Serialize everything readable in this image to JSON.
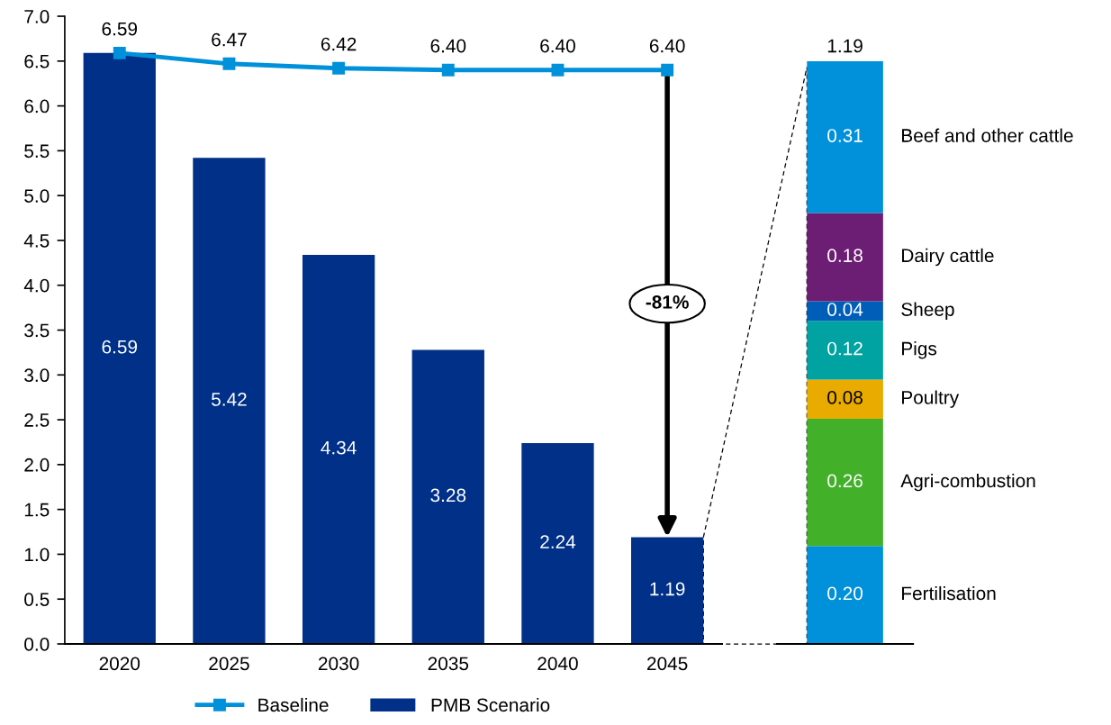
{
  "chart_data": [
    {
      "type": "bar",
      "categories": [
        "2020",
        "2025",
        "2030",
        "2035",
        "2040",
        "2045"
      ],
      "series": [
        {
          "name": "Baseline",
          "type": "line",
          "color": "#0091da",
          "values": [
            6.59,
            6.47,
            6.42,
            6.4,
            6.4,
            6.4
          ],
          "value_labels": [
            "6.59",
            "6.47",
            "6.42",
            "6.40",
            "6.40",
            "6.40"
          ]
        },
        {
          "name": "PMB Scenario",
          "color": "#003087",
          "values": [
            6.59,
            5.42,
            4.34,
            3.28,
            2.24,
            1.19
          ],
          "value_labels": [
            "6.59",
            "5.42",
            "4.34",
            "3.28",
            "2.24",
            "1.19"
          ]
        }
      ],
      "ylim": [
        0,
        7
      ],
      "yticks": [
        {
          "value": 0,
          "label": "0.0"
        },
        {
          "value": 0.5,
          "label": "0.5"
        },
        {
          "value": 1,
          "label": "1.0"
        },
        {
          "value": 1.5,
          "label": "1.5"
        },
        {
          "value": 2,
          "label": "2.0"
        },
        {
          "value": 2.5,
          "label": "2.5"
        },
        {
          "value": 3,
          "label": "3.0"
        },
        {
          "value": 3.5,
          "label": "3.5"
        },
        {
          "value": 4,
          "label": "4.0"
        },
        {
          "value": 4.5,
          "label": "4.5"
        },
        {
          "value": 5,
          "label": "5.0"
        },
        {
          "value": 5.5,
          "label": "5.5"
        },
        {
          "value": 6,
          "label": "6.0"
        },
        {
          "value": 6.5,
          "label": "6.5"
        },
        {
          "value": 7,
          "label": "7.0"
        }
      ],
      "marker": "square",
      "legend": "bottom",
      "annotations": [
        {
          "text": "-81%",
          "x": "2045",
          "y": 1.19
        }
      ]
    },
    {
      "type": "bar",
      "stacked": true,
      "categories": [
        null
      ],
      "series": [
        {
          "name": "Fertilisation",
          "color": "#0091da",
          "values": [
            0.2
          ],
          "value_labels": [
            "0.20"
          ]
        },
        {
          "name": "Agri-combustion",
          "color": "#43b02a",
          "values": [
            0.26
          ],
          "value_labels": [
            "0.26"
          ]
        },
        {
          "name": "Poultry",
          "color": "#eaab00",
          "values": [
            0.08
          ],
          "value_labels": [
            "0.08"
          ]
        },
        {
          "name": "Pigs",
          "color": "#00a3a1",
          "values": [
            0.12
          ],
          "value_labels": [
            "0.12"
          ]
        },
        {
          "name": "Sheep",
          "color": "#005eb8",
          "values": [
            0.04
          ],
          "value_labels": [
            "0.04"
          ]
        },
        {
          "name": "Dairy cattle",
          "color": "#6c1d74",
          "values": [
            0.18
          ],
          "value_labels": [
            "0.18"
          ]
        },
        {
          "name": "Beef and other cattle",
          "color": "#0091da",
          "values": [
            0.31
          ],
          "value_labels": [
            "0.31"
          ]
        }
      ],
      "ylim": [
        0,
        1.19
      ],
      "tick_labels": false,
      "totals": [
        "1.19"
      ]
    }
  ]
}
